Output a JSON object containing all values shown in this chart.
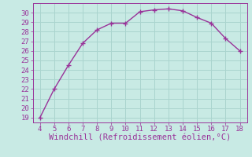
{
  "x": [
    4,
    5,
    6,
    7,
    8,
    9,
    10,
    11,
    12,
    13,
    14,
    15,
    16,
    17,
    18
  ],
  "y": [
    19,
    22,
    24.5,
    26.8,
    28.2,
    28.9,
    28.9,
    30.1,
    30.3,
    30.4,
    30.2,
    29.5,
    28.9,
    27.3,
    26.0
  ],
  "line_color": "#993399",
  "marker": "+",
  "marker_size": 4,
  "marker_linewidth": 1.0,
  "bg_color": "#c8eae4",
  "grid_color": "#aad4ce",
  "xlabel": "Windchill (Refroidissement éolien,°C)",
  "xlim": [
    3.5,
    18.5
  ],
  "ylim": [
    18.5,
    31.0
  ],
  "xticks": [
    4,
    5,
    6,
    7,
    8,
    9,
    10,
    11,
    12,
    13,
    14,
    15,
    16,
    17,
    18
  ],
  "yticks": [
    19,
    20,
    21,
    22,
    23,
    24,
    25,
    26,
    27,
    28,
    29,
    30
  ],
  "tick_color": "#993399",
  "label_color": "#993399",
  "tick_fontsize": 6.5,
  "xlabel_fontsize": 7.5,
  "linewidth": 1.0
}
